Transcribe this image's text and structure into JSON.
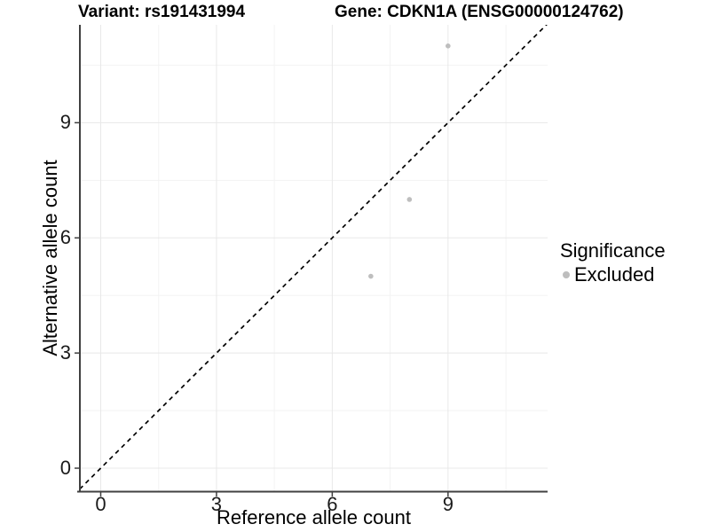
{
  "chart_data": {
    "type": "scatter",
    "title_parts": {
      "variant": "Variant: rs191431994",
      "gene": "Gene: CDKN1A (ENSG00000124762)"
    },
    "xlabel": "Reference allele count",
    "ylabel": "Alternative allele count",
    "x_ticks": [
      0,
      3,
      6,
      9
    ],
    "y_ticks": [
      0,
      3,
      6,
      9
    ],
    "xlim": [
      -0.54,
      11.58
    ],
    "ylim": [
      -0.6,
      11.55
    ],
    "grid": "major+minor",
    "identity_line": {
      "style": "dashed",
      "from": [
        -0.7,
        -0.7
      ],
      "to": [
        11.7,
        11.7
      ]
    },
    "series": [
      {
        "name": "Excluded",
        "points": [
          {
            "x": 7,
            "y": 5
          },
          {
            "x": 8,
            "y": 7
          },
          {
            "x": 9,
            "y": 11
          }
        ]
      }
    ],
    "legend": {
      "title": "Significance",
      "position": "right",
      "items": [
        {
          "label": "Excluded"
        }
      ]
    }
  },
  "colors": {
    "point": "#bebebe",
    "legend_dot": "#bebebe",
    "grid_major": "#e8e8e8",
    "grid_minor": "#f3f3f3",
    "axis_line": "#404040",
    "identity_line": "#000000",
    "text": "#000000"
  }
}
